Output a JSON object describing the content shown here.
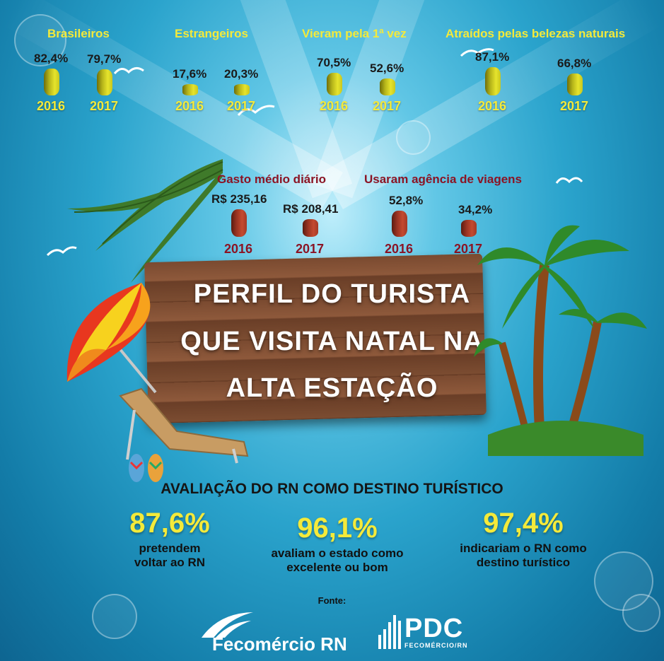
{
  "top_stats": [
    {
      "title": "Brasileiros",
      "v2016": "82,4%",
      "v2017": "79,7%"
    },
    {
      "title": "Estrangeiros",
      "v2016": "17,6%",
      "v2017": "20,3%"
    },
    {
      "title": "Vieram pela 1ª vez",
      "v2016": "70,5%",
      "v2017": "52,6%"
    },
    {
      "title": "Atraídos pelas belezas naturais",
      "v2016": "87,1%",
      "v2017": "66,8%"
    }
  ],
  "mid_stats": [
    {
      "title": "Gasto médio diário",
      "v2016": "R$ 235,16",
      "v2017": "R$ 208,41"
    },
    {
      "title": "Usaram agência de viagens",
      "v2016": "52,8%",
      "v2017": "34,2%"
    }
  ],
  "years": {
    "a": "2016",
    "b": "2017"
  },
  "sign": {
    "line1": "PERFIL DO TURISTA",
    "line2": "QUE VISITA NATAL NA",
    "line3": "ALTA ESTAÇÃO"
  },
  "evaluation": {
    "title": "AVALIAÇÃO DO RN COMO DESTINO TURÍSTICO",
    "items": [
      {
        "value": "87,6%",
        "line1": "pretendem",
        "line2": "voltar ao RN"
      },
      {
        "value": "96,1%",
        "line1": "avaliam o estado como",
        "line2": "excelente ou bom"
      },
      {
        "value": "97,4%",
        "line1": "indicariam o RN como",
        "line2": "destino turístico"
      }
    ]
  },
  "source": {
    "label": "Fonte:",
    "logo1": "Fecomércio RN",
    "logo2_main": "PDC",
    "logo2_sub": "FECOMÉRCIO/RN"
  },
  "colors": {
    "yellow": "#f4ea3a",
    "dark_red": "#8b1424",
    "ocean": "#2aa3cc"
  },
  "chart_data": [
    {
      "type": "bar",
      "title": "Brasileiros",
      "categories": [
        "2016",
        "2017"
      ],
      "values": [
        82.4,
        79.7
      ],
      "unit": "%"
    },
    {
      "type": "bar",
      "title": "Estrangeiros",
      "categories": [
        "2016",
        "2017"
      ],
      "values": [
        17.6,
        20.3
      ],
      "unit": "%"
    },
    {
      "type": "bar",
      "title": "Vieram pela 1ª vez",
      "categories": [
        "2016",
        "2017"
      ],
      "values": [
        70.5,
        52.6
      ],
      "unit": "%"
    },
    {
      "type": "bar",
      "title": "Atraídos pelas belezas naturais",
      "categories": [
        "2016",
        "2017"
      ],
      "values": [
        87.1,
        66.8
      ],
      "unit": "%"
    },
    {
      "type": "bar",
      "title": "Gasto médio diário",
      "categories": [
        "2016",
        "2017"
      ],
      "values": [
        235.16,
        208.41
      ],
      "unit": "R$"
    },
    {
      "type": "bar",
      "title": "Usaram agência de viagens",
      "categories": [
        "2016",
        "2017"
      ],
      "values": [
        52.8,
        34.2
      ],
      "unit": "%"
    }
  ]
}
